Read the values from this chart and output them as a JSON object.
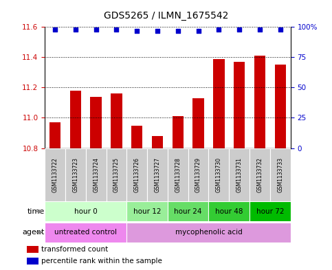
{
  "title": "GDS5265 / ILMN_1675542",
  "samples": [
    "GSM1133722",
    "GSM1133723",
    "GSM1133724",
    "GSM1133725",
    "GSM1133726",
    "GSM1133727",
    "GSM1133728",
    "GSM1133729",
    "GSM1133730",
    "GSM1133731",
    "GSM1133732",
    "GSM1133733"
  ],
  "bar_values": [
    10.97,
    11.18,
    11.14,
    11.16,
    10.95,
    10.88,
    11.01,
    11.13,
    11.39,
    11.37,
    11.41,
    11.35
  ],
  "percentile_values": [
    98,
    98,
    98,
    98,
    97,
    97,
    97,
    97,
    98,
    98,
    98,
    98
  ],
  "ylim_left": [
    10.8,
    11.6
  ],
  "ylim_right": [
    0,
    100
  ],
  "yticks_left": [
    10.8,
    11.0,
    11.2,
    11.4,
    11.6
  ],
  "yticks_right": [
    0,
    25,
    50,
    75,
    100
  ],
  "bar_color": "#cc0000",
  "dot_color": "#0000cc",
  "bar_bottom": 10.8,
  "time_groups": [
    {
      "label": "hour 0",
      "start": 0,
      "end": 4,
      "color": "#ccffcc"
    },
    {
      "label": "hour 12",
      "start": 4,
      "end": 6,
      "color": "#99ee99"
    },
    {
      "label": "hour 24",
      "start": 6,
      "end": 8,
      "color": "#66dd66"
    },
    {
      "label": "hour 48",
      "start": 8,
      "end": 10,
      "color": "#33cc33"
    },
    {
      "label": "hour 72",
      "start": 10,
      "end": 12,
      "color": "#00bb00"
    }
  ],
  "agent_groups": [
    {
      "label": "untreated control",
      "start": 0,
      "end": 4,
      "color": "#ee88ee"
    },
    {
      "label": "mycophenolic acid",
      "start": 4,
      "end": 12,
      "color": "#dd99dd"
    }
  ],
  "legend_items": [
    {
      "label": "transformed count",
      "color": "#cc0000"
    },
    {
      "label": "percentile rank within the sample",
      "color": "#0000cc"
    }
  ],
  "sample_label_bg": "#cccccc",
  "bg_color": "#ffffff",
  "tick_label_color_left": "#cc0000",
  "tick_label_color_right": "#0000cc",
  "label_fontsize": 8,
  "tick_fontsize": 7.5,
  "sample_fontsize": 5.5
}
